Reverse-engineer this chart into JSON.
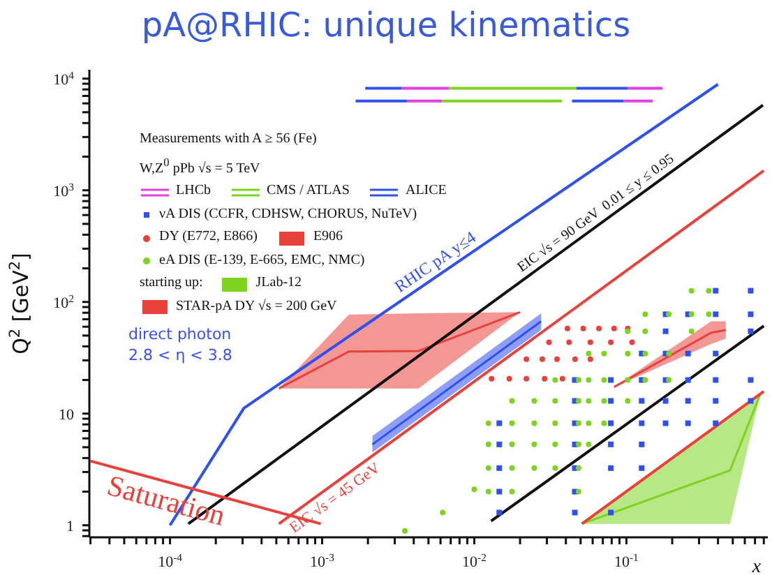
{
  "chart_data": {
    "type": "scatter",
    "title": "pA@RHIC: unique kinematics",
    "xlabel": "x",
    "ylabel": "Q$^{2}$ [GeV$^{2}$]",
    "legend_title": "Measurements with A ≥ 56 (Fe)",
    "legend": "top left",
    "log": "xy",
    "grid": false,
    "annotations": [
      "W,Z$^{0}$ pPb √s = 5 TeV",
      "starting up:",
      "direct photon",
      "2.8 < η < 3.8"
    ],
    "xlim": [
      2.95e-05,
      0.85
    ],
    "ylim": [
      0.78,
      12000
    ],
    "xticks": [
      {
        "value": 3e-05,
        "label": null
      },
      {
        "value": 4e-05,
        "label": null
      },
      {
        "value": 5e-05,
        "label": null
      },
      {
        "value": 6e-05,
        "label": null
      },
      {
        "value": 7e-05,
        "label": null
      },
      {
        "value": 8e-05,
        "label": null
      },
      {
        "value": 9e-05,
        "label": null
      },
      {
        "value": 0.0001,
        "label": "10$^{-4}$"
      },
      {
        "value": 0.0002,
        "label": null
      },
      {
        "value": 0.0003,
        "label": null
      },
      {
        "value": 0.0004,
        "label": null
      },
      {
        "value": 0.0005,
        "label": null
      },
      {
        "value": 0.0006,
        "label": null
      },
      {
        "value": 0.0007,
        "label": null
      },
      {
        "value": 0.0008,
        "label": null
      },
      {
        "value": 0.0009,
        "label": null
      },
      {
        "value": 0.001,
        "label": "10$^{-3}$"
      },
      {
        "value": 0.002,
        "label": null
      },
      {
        "value": 0.003,
        "label": null
      },
      {
        "value": 0.004,
        "label": null
      },
      {
        "value": 0.005,
        "label": null
      },
      {
        "value": 0.006,
        "label": null
      },
      {
        "value": 0.007,
        "label": null
      },
      {
        "value": 0.008,
        "label": null
      },
      {
        "value": 0.009,
        "label": null
      },
      {
        "value": 0.01,
        "label": "10$^{-2}$"
      },
      {
        "value": 0.02,
        "label": null
      },
      {
        "value": 0.03,
        "label": null
      },
      {
        "value": 0.04,
        "label": null
      },
      {
        "value": 0.05,
        "label": null
      },
      {
        "value": 0.06,
        "label": null
      },
      {
        "value": 0.07,
        "label": null
      },
      {
        "value": 0.08,
        "label": null
      },
      {
        "value": 0.09,
        "label": null
      },
      {
        "value": 0.1,
        "label": "10$^{-1}$"
      },
      {
        "value": 0.2,
        "label": null
      },
      {
        "value": 0.3,
        "label": null
      },
      {
        "value": 0.4,
        "label": null
      },
      {
        "value": 0.5,
        "label": null
      },
      {
        "value": 0.6,
        "label": null
      },
      {
        "value": 0.7,
        "label": null
      },
      {
        "value": 0.8,
        "label": null
      }
    ],
    "yticks": [
      {
        "value": 0.8,
        "label": null
      },
      {
        "value": 0.9,
        "label": null
      },
      1,
      {
        "value": 2,
        "label": null
      },
      {
        "value": 3,
        "label": null
      },
      {
        "value": 4,
        "label": null
      },
      {
        "value": 5,
        "label": null
      },
      {
        "value": 6,
        "label": null
      },
      {
        "value": 7,
        "label": null
      },
      {
        "value": 8,
        "label": null
      },
      {
        "value": 9,
        "label": null
      },
      10,
      {
        "value": 20,
        "label": null
      },
      {
        "value": 30,
        "label": null
      },
      {
        "value": 40,
        "label": null
      },
      {
        "value": 50,
        "label": null
      },
      {
        "value": 60,
        "label": null
      },
      {
        "value": 70,
        "label": null
      },
      {
        "value": 80,
        "label": null
      },
      {
        "value": 90,
        "label": null
      },
      {
        "value": 100,
        "label": "10$^{2}$"
      },
      {
        "value": 200,
        "label": null
      },
      {
        "value": 300,
        "label": null
      },
      {
        "value": 400,
        "label": null
      },
      {
        "value": 500,
        "label": null
      },
      {
        "value": 600,
        "label": null
      },
      {
        "value": 700,
        "label": null
      },
      {
        "value": 800,
        "label": null
      },
      {
        "value": 900,
        "label": null
      },
      {
        "value": 1000,
        "label": "10$^{3}$"
      },
      {
        "value": 2000,
        "label": null
      },
      {
        "value": 3000,
        "label": null
      },
      {
        "value": 4000,
        "label": null
      },
      {
        "value": 5000,
        "label": null
      },
      {
        "value": 6000,
        "label": null
      },
      {
        "value": 7000,
        "label": null
      },
      {
        "value": 8000,
        "label": null
      },
      {
        "value": 9000,
        "label": null
      },
      {
        "value": 10000,
        "label": "10$^{4}$"
      }
    ],
    "series": [
      {
        "type": "line",
        "name": "STAR-pA DY √s = 200 GeV",
        "color": "#e8413c",
        "x": [
          0.00052,
          0.0015,
          0.0043,
          0.02
        ],
        "values": [
          16.8,
          36,
          36.4,
          81
        ],
        "lower": [
          16.8,
          16.8,
          16.8,
          81
        ],
        "upper": [
          16.8,
          77,
          79,
          81
        ]
      },
      {
        "type": "line",
        "name": "E906",
        "color": "#e8413c",
        "x": [
          0.083,
          0.36,
          0.45
        ],
        "values": [
          17.3,
          53,
          56
        ],
        "lower": [
          17.3,
          42,
          47
        ],
        "upper": [
          17.3,
          67,
          67
        ]
      },
      {
        "type": "line",
        "name": "JLab-12",
        "color": "#7ed321",
        "x": [
          0.051,
          0.48,
          0.76
        ],
        "values": [
          1.03,
          3.1,
          15
        ],
        "lower": [
          1.03,
          1.03,
          15
        ],
        "upper": [
          1.03,
          9.4,
          15
        ]
      },
      {
        "type": "line",
        "color": "#2f4ff0",
        "x": [
          0.00214,
          0.0275
        ],
        "values": [
          5.3,
          67
        ],
        "lower": [
          4.5,
          56
        ],
        "upper": [
          6.3,
          79
        ]
      },
      {
        "name": "νA DIS (CCFR, CDHSW, CHORUS, NuTeV)",
        "color": "#2f4ff0",
        "marker": "square",
        "x": [
          0.0146,
          0.0146,
          0.0146,
          0.0146,
          0.0146,
          0.0458,
          0.0458,
          0.0458,
          0.0458,
          0.0458,
          0.0458,
          0.0458,
          0.079,
          0.079,
          0.079,
          0.079,
          0.079,
          0.079,
          0.126,
          0.126,
          0.126,
          0.126,
          0.126,
          0.126,
          0.181,
          0.181,
          0.181,
          0.181,
          0.181,
          0.181,
          0.254,
          0.254,
          0.254,
          0.254,
          0.254,
          0.386,
          0.386,
          0.386,
          0.386,
          0.386,
          0.386,
          0.656,
          0.656,
          0.656,
          0.656,
          0.656
        ],
        "values": [
          8.2,
          5.3,
          3.25,
          2,
          1.3,
          20,
          13,
          8.2,
          5.3,
          3.25,
          2,
          1.3,
          20,
          13,
          8.2,
          5.3,
          3.25,
          1.3,
          34.5,
          20,
          13,
          8.2,
          5.3,
          3.25,
          77.6,
          54.6,
          34.5,
          20,
          13,
          8.2,
          77.6,
          34.5,
          20,
          13,
          8.2,
          126,
          77.6,
          34.5,
          20,
          13,
          8.2,
          126,
          77.6,
          54.6,
          20,
          13
        ]
      },
      {
        "name": "DY (E772, E866)",
        "color": "#e8413c",
        "marker": "circle",
        "x": [
          0.041,
          0.052,
          0.066,
          0.083,
          0.102,
          0.031,
          0.042,
          0.058,
          0.079,
          0.109,
          0.022,
          0.028,
          0.035,
          0.046,
          0.058,
          0.013,
          0.017,
          0.022,
          0.029,
          0.038
        ],
        "values": [
          57.8,
          57.8,
          57.8,
          57.8,
          57.8,
          43.5,
          43.5,
          43.5,
          43.5,
          43.5,
          30.7,
          30.7,
          30.7,
          30.7,
          30.7,
          20.5,
          20.5,
          20.5,
          20.5,
          20.5
        ]
      },
      {
        "name": "eA DIS (E-139, E-665, EMC, NMC)",
        "color": "#7ed321",
        "marker": "circle",
        "x": [
          0.0124,
          0.0124,
          0.0124,
          0.0124,
          0.0177,
          0.0177,
          0.0177,
          0.0177,
          0.0177,
          0.0248,
          0.0248,
          0.0248,
          0.0248,
          0.034,
          0.034,
          0.034,
          0.034,
          0.034,
          0.0485,
          0.0485,
          0.0485,
          0.0485,
          0.0485,
          0.0485,
          0.0565,
          0.0565,
          0.0565,
          0.0565,
          0.0565,
          0.0713,
          0.0713,
          0.0713,
          0.0713,
          0.102,
          0.102,
          0.102,
          0.102,
          0.133,
          0.133,
          0.133,
          0.133,
          0.19,
          0.19,
          0.19,
          0.268,
          0.268,
          0.268,
          0.348,
          0.348,
          0.01,
          0.0062,
          0.0035
        ],
        "values": [
          8.2,
          5.3,
          3.25,
          2,
          13,
          8.2,
          5.3,
          3.25,
          2,
          13,
          8.2,
          5.3,
          3.25,
          20,
          13,
          8.2,
          5.3,
          3.25,
          20,
          13,
          8.2,
          5.3,
          3.25,
          2,
          34.5,
          20,
          13,
          8.2,
          5.3,
          34.5,
          20,
          13,
          8.2,
          54.6,
          34.5,
          20,
          13,
          77.6,
          54.6,
          34.5,
          20,
          77.6,
          34.5,
          20,
          126,
          77.6,
          54.6,
          126,
          77.6,
          2.1,
          1.3,
          0.89
        ]
      },
      {
        "type": "line",
        "name": "LHCb",
        "color": "#e040e0",
        "x": [
          0.00333,
          0.00684,
          null,
          0.102,
          0.173,
          null,
          0.00363,
          0.00615,
          null,
          0.0959,
          0.149
        ],
        "values": [
          8200,
          8200,
          null,
          8200,
          8200,
          null,
          6300,
          6300,
          null,
          6300,
          6300
        ]
      },
      {
        "type": "line",
        "name": "CMS / ATLAS",
        "color": "#7ed321",
        "x": [
          0.00684,
          0.0468,
          null,
          0.00615,
          0.0378
        ],
        "values": [
          8200,
          8200,
          null,
          6300,
          6300
        ]
      },
      {
        "type": "line",
        "name": "ALICE",
        "color": "#2f4ff0",
        "x": [
          0.00192,
          0.00333,
          null,
          0.0468,
          0.102,
          null,
          0.00166,
          0.00363,
          null,
          0.0439,
          0.0959
        ],
        "values": [
          8200,
          8200,
          null,
          8200,
          8200,
          null,
          6300,
          6300,
          null,
          6300,
          6300
        ]
      },
      {
        "type": "line",
        "name": "RHIC pA y≤4",
        "color": "#2f4ff0",
        "x": [
          0.0001,
          0.000306,
          0.4
        ],
        "values": [
          1,
          11.2,
          8900
        ]
      },
      {
        "type": "line",
        "name": "EIC √s = 90 GeV  0.01 ≤ y ≤ 0.95",
        "color": "#111111",
        "x": [
          0.000132,
          0.79
        ],
        "values": [
          1.03,
          5800
        ]
      },
      {
        "type": "line",
        "name": "EIC √s = 45 GeV",
        "color": "#e8413c",
        "x": [
          0.00052,
          0.8
        ],
        "values": [
          1.03,
          1500
        ]
      },
      {
        "type": "line",
        "name": "Saturation",
        "color": "#e8413c",
        "x": [
          3e-05,
          0.00098
        ],
        "values": [
          3.76,
          1.03
        ]
      },
      {
        "type": "line",
        "color": "#111111",
        "x": [
          0.0129,
          0.8
        ],
        "values": [
          1.09,
          61
        ]
      },
      {
        "type": "line",
        "color": "#e8413c",
        "x": [
          0.051,
          0.8
        ],
        "values": [
          1.03,
          15.8
        ]
      }
    ]
  }
}
